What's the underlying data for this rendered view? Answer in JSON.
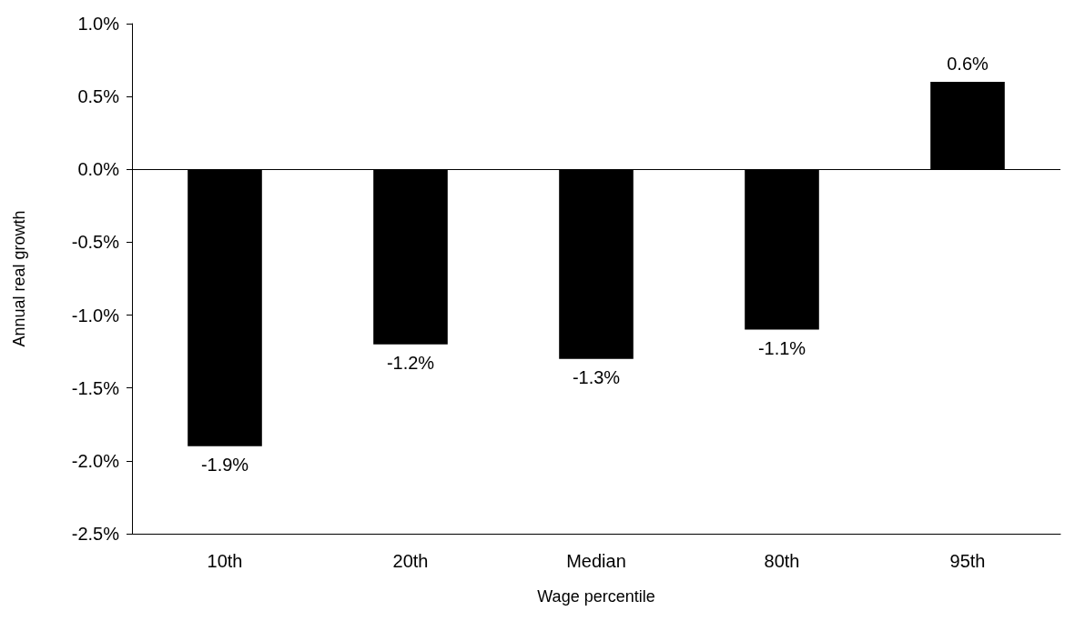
{
  "chart_data": {
    "type": "bar",
    "xlabel": "Wage percentile",
    "ylabel": "Annual real growth",
    "categories": [
      "10th",
      "20th",
      "Median",
      "80th",
      "95th"
    ],
    "values": [
      -1.9,
      -1.2,
      -1.3,
      -1.1,
      0.6
    ],
    "value_labels": [
      "-1.9%",
      "-1.2%",
      "-1.3%",
      "-1.1%",
      "0.6%"
    ],
    "color": "#000000",
    "ylim": [
      -2.5,
      1.0
    ],
    "yticks": [
      {
        "value": -2.5,
        "label": "-2.5%"
      },
      {
        "value": -2.0,
        "label": "-2.0%"
      },
      {
        "value": -1.5,
        "label": "-1.5%"
      },
      {
        "value": -1.0,
        "label": "-1.0%"
      },
      {
        "value": -0.5,
        "label": "-0.5%"
      },
      {
        "value": 0,
        "label": "0.0%"
      },
      {
        "value": 0.5,
        "label": "0.5%"
      },
      {
        "value": 1.0,
        "label": "1.0%"
      }
    ],
    "ref_lines": [
      {
        "axis": "y",
        "value": 0,
        "color": "#000000"
      }
    ],
    "grid": false
  }
}
